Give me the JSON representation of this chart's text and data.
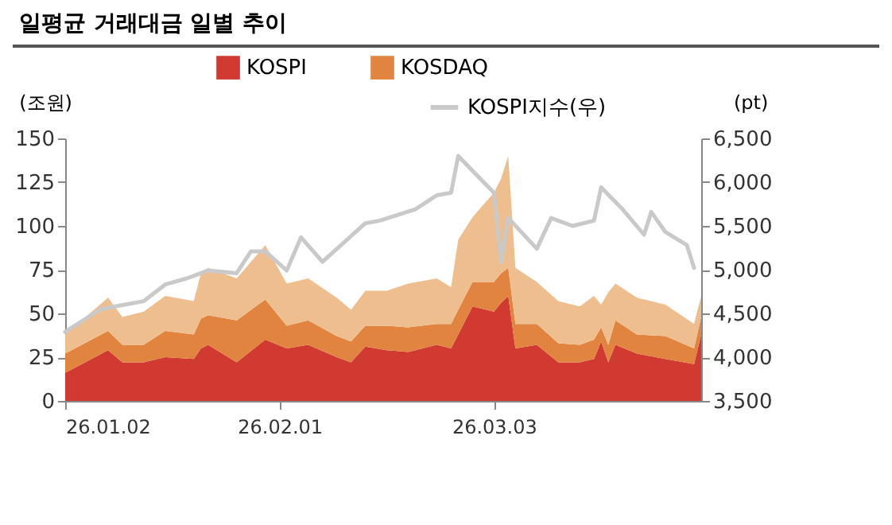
{
  "chart_data": {
    "type": "area",
    "stacked": true,
    "title": "일평균 거래대금 일별 추이",
    "ylabel": "(조원)",
    "y2label": "(pt)",
    "x": [
      "--01-02",
      "--01-08",
      "--01-10",
      "--01-13",
      "--01-16",
      "--01-20",
      "--01-21",
      "--01-22",
      "--01-26",
      "--01-30",
      "--02-02",
      "--02-05",
      "--02-09",
      "--02-11",
      "--02-13",
      "--02-16",
      "--02-19",
      "--02-23",
      "--02-25",
      "--02-26",
      "--02-28",
      "--03-03",
      "--03-04",
      "--03-05",
      "--03-06",
      "--03-09",
      "--03-12",
      "--03-15",
      "--03-17",
      "--03-18",
      "--03-19",
      "--03-20",
      "--03-23",
      "--03-27",
      "--03-31",
      "--04-01"
    ],
    "series": [
      {
        "name": "KOSPI",
        "color": "#d03a31",
        "values": [
          16,
          29,
          22,
          22,
          25,
          24,
          30,
          32,
          22,
          35,
          30,
          32,
          25,
          22,
          31,
          29,
          28,
          32,
          30,
          38,
          54,
          51,
          56,
          60,
          30,
          32,
          22,
          22,
          24,
          34,
          22,
          32,
          27,
          24,
          21,
          38
        ]
      },
      {
        "name": "KOSDAQ",
        "color": "#e0843f",
        "values": [
          11,
          11,
          10,
          10,
          15,
          14,
          17,
          17,
          24,
          23,
          13,
          14,
          12,
          12,
          12,
          14,
          14,
          12,
          14,
          14,
          14,
          17,
          17,
          16,
          14,
          12,
          11,
          10,
          11,
          8,
          10,
          14,
          11,
          13,
          9,
          10
        ]
      },
      {
        "color": "#efbe8e",
        "values": [
          11,
          19,
          16,
          19,
          20,
          19,
          26,
          27,
          24,
          31,
          24,
          24,
          22,
          18,
          20,
          20,
          25,
          26,
          21,
          40,
          37,
          51,
          54,
          64,
          32,
          24,
          24,
          22,
          25,
          13,
          30,
          21,
          21,
          18,
          14,
          12
        ]
      },
      {
        "name": "KOSPI지수(우)",
        "type": "line",
        "axis": "y2",
        "color": "#c9c9c9",
        "x": [
          "--01-02",
          "--01-07",
          "--01-13",
          "--01-16",
          "--01-19",
          "--01-22",
          "--01-26",
          "--01-28",
          "--01-30",
          "--02-02",
          "--02-04",
          "--02-07",
          "--02-10",
          "--02-13",
          "--02-15",
          "--02-20",
          "--02-23",
          "--02-25",
          "--02-26",
          "--02-28",
          "--03-03",
          "--03-04",
          "--03-05",
          "--03-09",
          "--03-11",
          "--03-14",
          "--03-17",
          "--03-18",
          "--03-21",
          "--03-24",
          "--03-25",
          "--03-27",
          "--03-30",
          "--03-31"
        ],
        "values": [
          4290,
          4550,
          4640,
          4830,
          4900,
          4990,
          4960,
          5210,
          5210,
          4990,
          5370,
          5090,
          5310,
          5530,
          5560,
          5690,
          5850,
          5880,
          6300,
          6130,
          5880,
          5090,
          5590,
          5240,
          5590,
          5500,
          5560,
          5940,
          5690,
          5400,
          5660,
          5430,
          5280,
          5020
        ]
      }
    ],
    "xlim": [
      "--01-02",
      "--04-01"
    ],
    "xticks": [
      {
        "value": "--01-02",
        "label": "26.01.02"
      },
      {
        "value": "--02-01",
        "label": "26.02.01"
      },
      {
        "value": "--03-03",
        "label": "26.03.03"
      }
    ],
    "ylim": [
      0,
      150
    ],
    "yticks": [
      0,
      25,
      50,
      75,
      100,
      125,
      150
    ],
    "y2lim": [
      3500,
      6500
    ],
    "y2ticks": [
      {
        "value": 3500,
        "label": "3,500"
      },
      {
        "value": 4000,
        "label": "4,000"
      },
      {
        "value": 4500,
        "label": "4,500"
      },
      {
        "value": 5000,
        "label": "5,000"
      },
      {
        "value": 5500,
        "label": "5,500"
      },
      {
        "value": 6000,
        "label": "6,000"
      },
      {
        "value": 6500,
        "label": "6,500"
      }
    ],
    "grid": false,
    "legend": "top"
  }
}
